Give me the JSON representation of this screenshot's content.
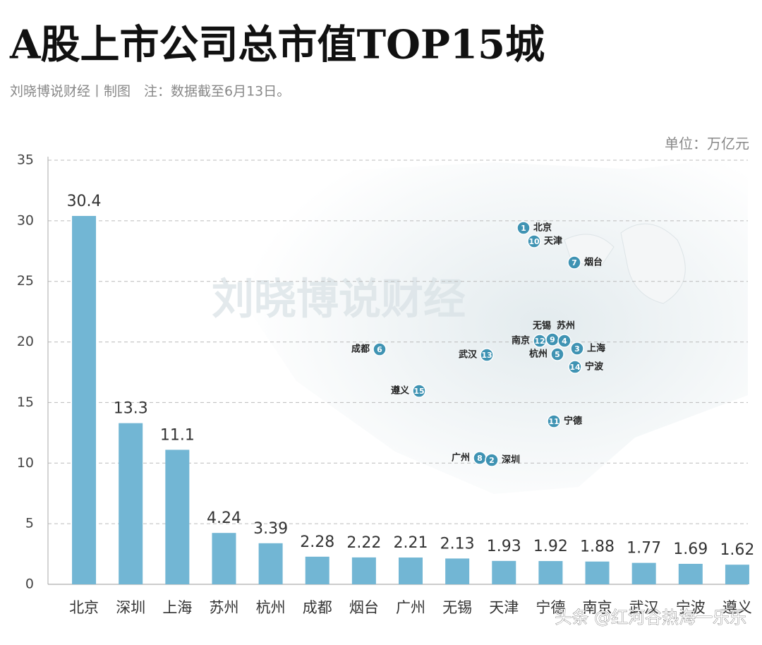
{
  "chart_data": {
    "type": "bar",
    "title": "A股上市公司总市值TOP15城",
    "subtitle": "刘晓博说财经丨制图　注：数据截至6月13日。",
    "unit_label": "单位：万亿元",
    "categories": [
      "北京",
      "深圳",
      "上海",
      "苏州",
      "杭州",
      "成都",
      "烟台",
      "广州",
      "无锡",
      "天津",
      "宁德",
      "南京",
      "武汉",
      "宁波",
      "遵义"
    ],
    "values": [
      30.4,
      13.3,
      11.1,
      4.24,
      3.39,
      2.28,
      2.22,
      2.21,
      2.13,
      1.93,
      1.92,
      1.88,
      1.77,
      1.69,
      1.62
    ],
    "color": "#72b6d4",
    "ylim": [
      0,
      35
    ],
    "yticks": [
      0,
      5,
      10,
      15,
      20,
      25,
      30,
      35
    ],
    "grid": true,
    "map_markers": [
      {
        "rank": 1,
        "city": "北京"
      },
      {
        "rank": 10,
        "city": "天津"
      },
      {
        "rank": 7,
        "city": "烟台"
      },
      {
        "rank": 12,
        "city": "南京"
      },
      {
        "rank": 9,
        "city": "无锡"
      },
      {
        "rank": 4,
        "city": "苏州"
      },
      {
        "rank": 5,
        "city": "杭州"
      },
      {
        "rank": 3,
        "city": "上海"
      },
      {
        "rank": 14,
        "city": "宁波"
      },
      {
        "rank": 6,
        "city": "成都"
      },
      {
        "rank": 13,
        "city": "武汉"
      },
      {
        "rank": 15,
        "city": "遵义"
      },
      {
        "rank": 11,
        "city": "宁德"
      },
      {
        "rank": 8,
        "city": "广州"
      },
      {
        "rank": 2,
        "city": "深圳"
      }
    ],
    "watermarks": [
      "刘晓博说财经",
      "头条 @红河谷热海一乐乐"
    ]
  }
}
